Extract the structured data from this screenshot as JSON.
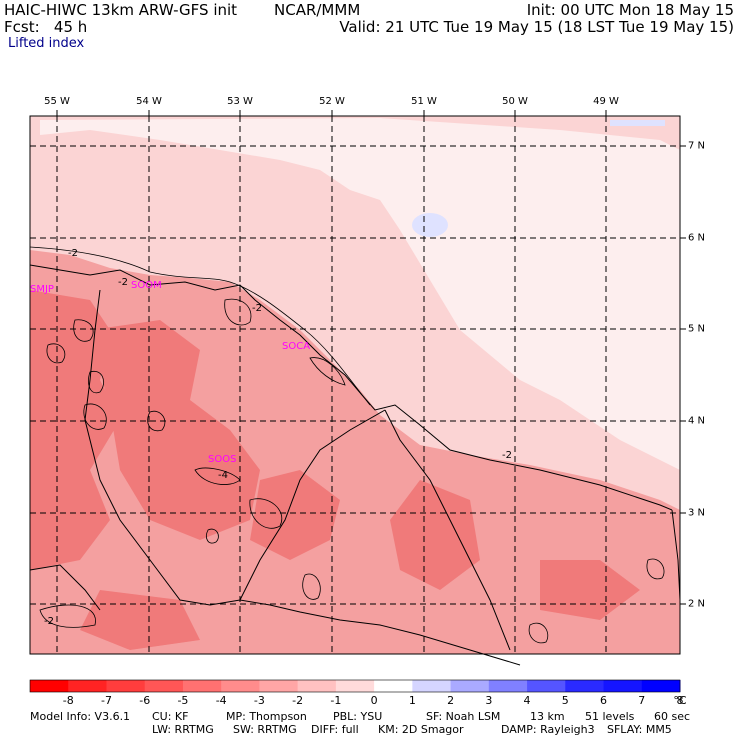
{
  "header": {
    "model": "HAIC-HIWC 13km ARW-GFS init",
    "org": "NCAR/MMM",
    "fcst": "Fcst:   45 h",
    "init": "Init: 00 UTC Mon 18 May 15",
    "valid": "Valid: 21 UTC Tue 19 May 15 (18 LST Tue 19 May 15)",
    "field": "Lifted index"
  },
  "map": {
    "lon_labels": [
      "55 W",
      "54 W",
      "53 W",
      "52 W",
      "51 W",
      "50 W",
      "49 W"
    ],
    "lat_labels": [
      "7 N",
      "6 N",
      "5 N",
      "4 N",
      "3 N",
      "2 N"
    ],
    "stations": [
      "SMJP",
      "SOOM",
      "SOCA",
      "SOOS"
    ],
    "contour_labels": [
      "-2",
      "-2",
      "-2",
      "-2",
      "-2",
      "-4"
    ],
    "colors": {
      "strong_negative": "#f07a7a",
      "moderate_negative": "#f4a0a0",
      "weak_negative": "#fbd4d4",
      "near_zero": "#fdeeee",
      "positive": "#dfe2ff",
      "station": "#ff00ff"
    }
  },
  "colorbar": {
    "ticks": [
      "-8",
      "-7",
      "-6",
      "-5",
      "-4",
      "-3",
      "-2",
      "-1",
      "0",
      "1",
      "2",
      "3",
      "4",
      "5",
      "6",
      "7",
      "8"
    ],
    "unit": "°C",
    "colors": [
      "#ff0000",
      "#ff2323",
      "#ff3d3d",
      "#ff5656",
      "#ff7171",
      "#ff8c8c",
      "#ffa6a6",
      "#ffc1c1",
      "#ffdbdb",
      "#ffffff",
      "#d5d5ff",
      "#aaaaff",
      "#8080ff",
      "#5555ff",
      "#2a2aff",
      "#1515ff",
      "#0000ff"
    ]
  },
  "footer": {
    "line1": [
      "Model Info: V3.6.1",
      "CU: KF",
      "MP: Thompson",
      "PBL: YSU",
      "SF: Noah LSM",
      "13 km",
      "51 levels",
      "60 sec"
    ],
    "line2": [
      "LW: RRTMG",
      "SW: RRTMG",
      "DIFF: full",
      "KM: 2D Smagor",
      "DAMP: Rayleigh3",
      "SFLAY: MM5"
    ]
  }
}
